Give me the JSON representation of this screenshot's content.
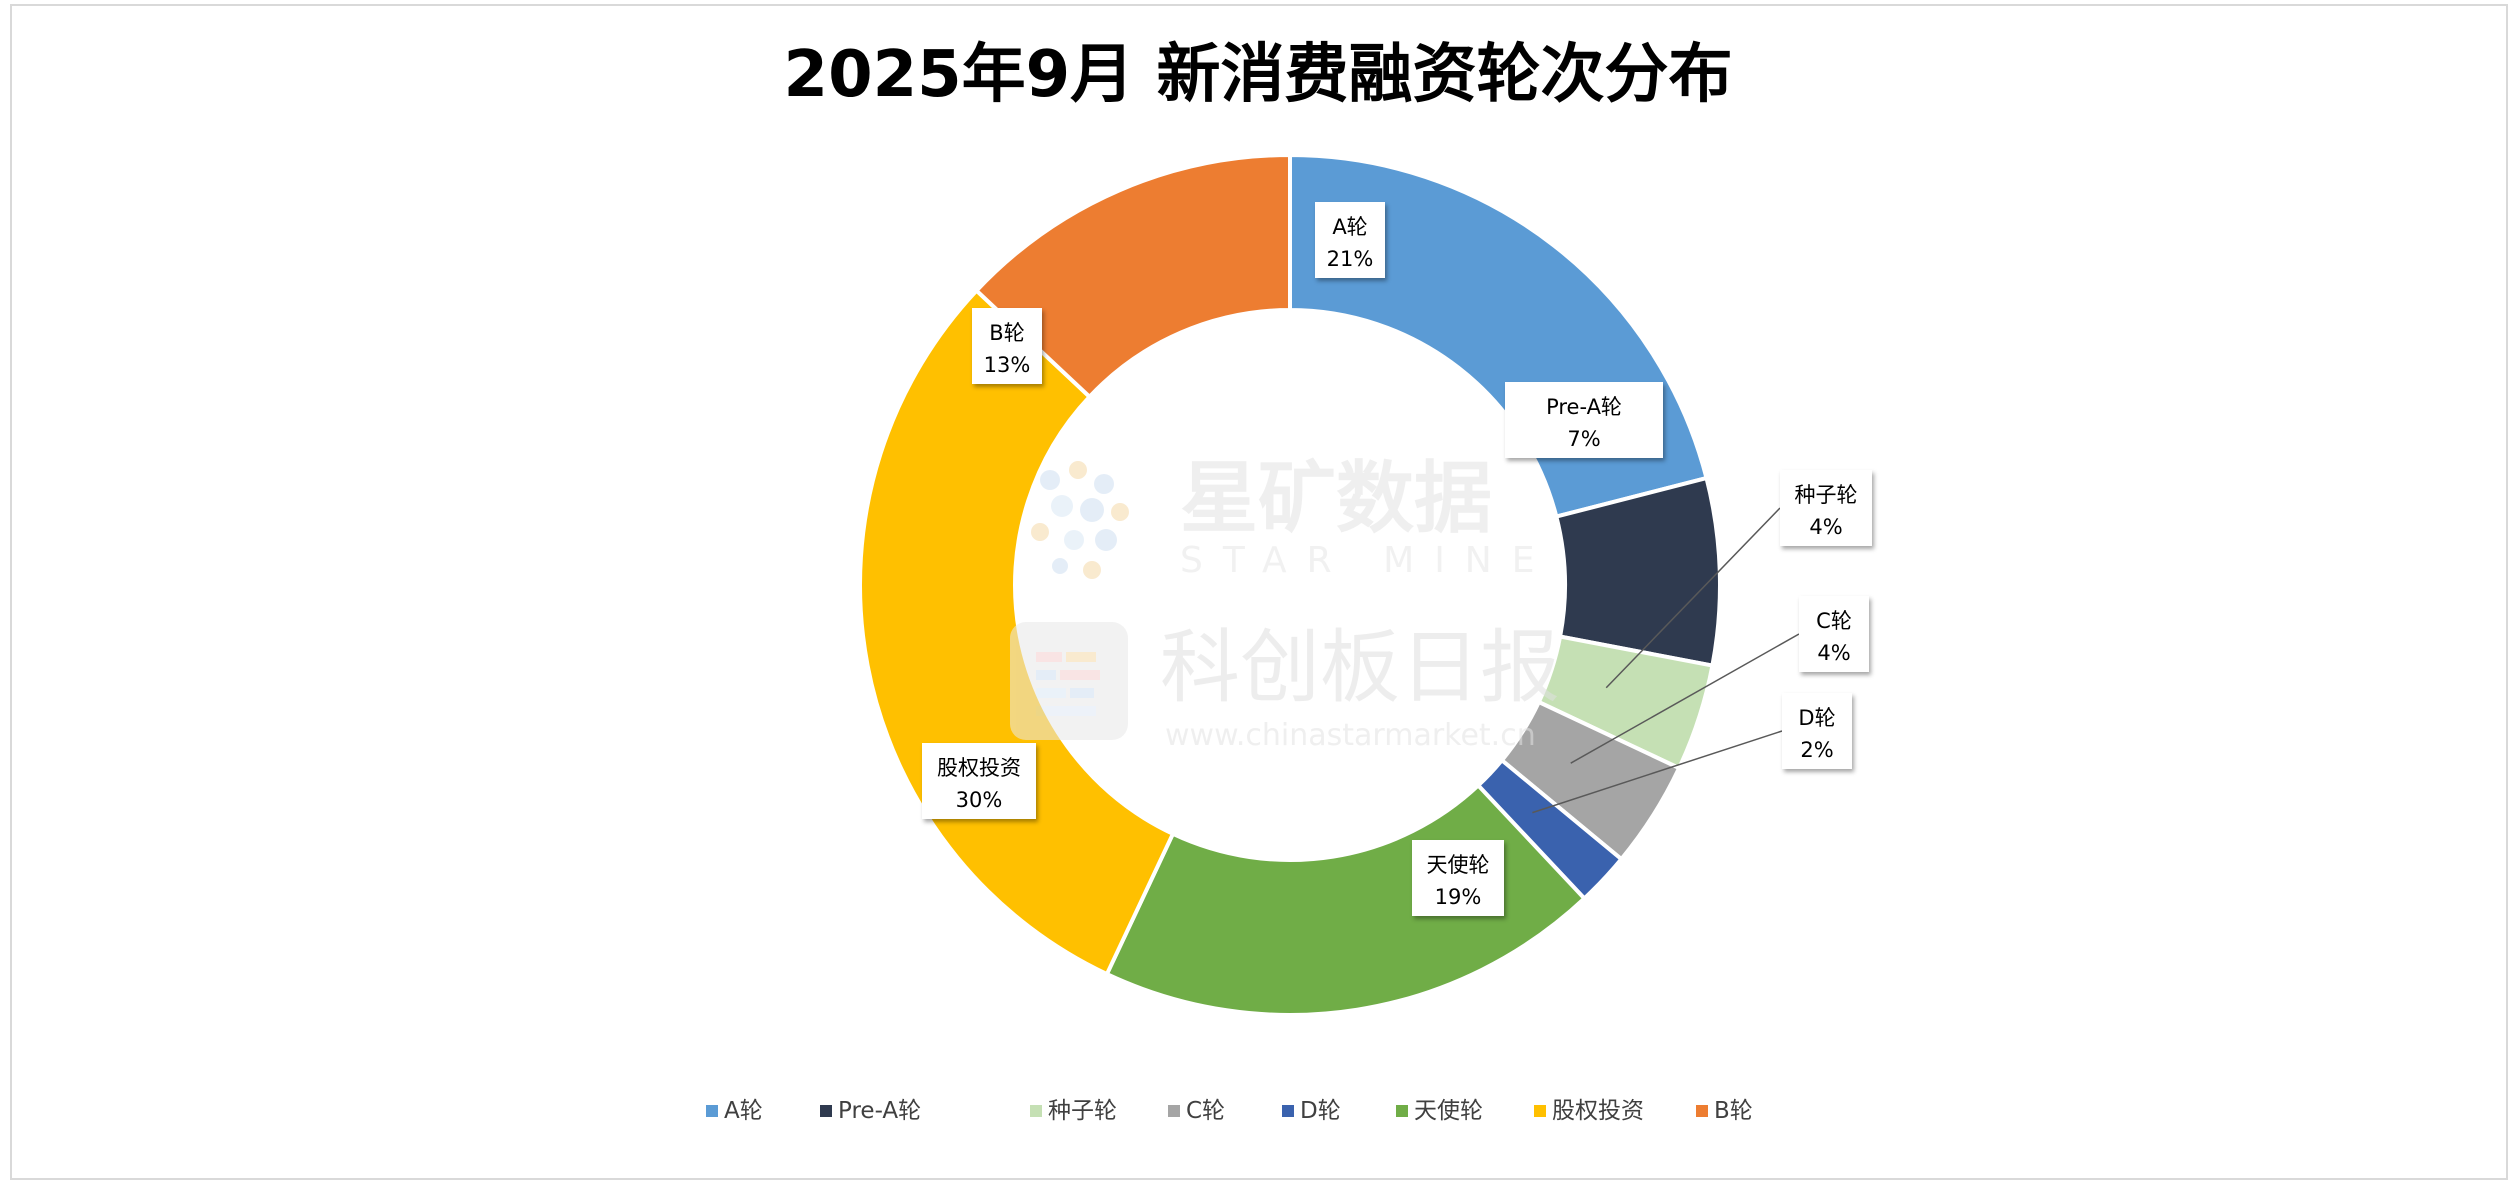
{
  "chart_data": {
    "type": "pie",
    "variant": "donut",
    "title": "2025年9月 新消费融资轮次分布",
    "slices": [
      {
        "label": "A轮",
        "value": 21,
        "value_text": "21%",
        "color": "#5B9BD5"
      },
      {
        "label": "Pre-A轮",
        "value": 7,
        "value_text": "7%",
        "color": "#2F3A4F"
      },
      {
        "label": "种子轮",
        "value": 4,
        "value_text": "4%",
        "color": "#C5E0B4"
      },
      {
        "label": "C轮",
        "value": 4,
        "value_text": "4%",
        "color": "#A5A5A5"
      },
      {
        "label": "D轮",
        "value": 2,
        "value_text": "2%",
        "color": "#3A62AE"
      },
      {
        "label": "天使轮",
        "value": 19,
        "value_text": "19%",
        "color": "#70AD47"
      },
      {
        "label": "股权投资",
        "value": 30,
        "value_text": "30%",
        "color": "#FFC000"
      },
      {
        "label": "B轮",
        "value": 13,
        "value_text": "13%",
        "color": "#ED7D31"
      }
    ],
    "legend_position": "bottom"
  },
  "watermark": {
    "brand1": "星矿数据",
    "brand1_sub": "STAR MINE",
    "brand2": "科创板日报",
    "url": "www.chinastarmarket.cn"
  }
}
